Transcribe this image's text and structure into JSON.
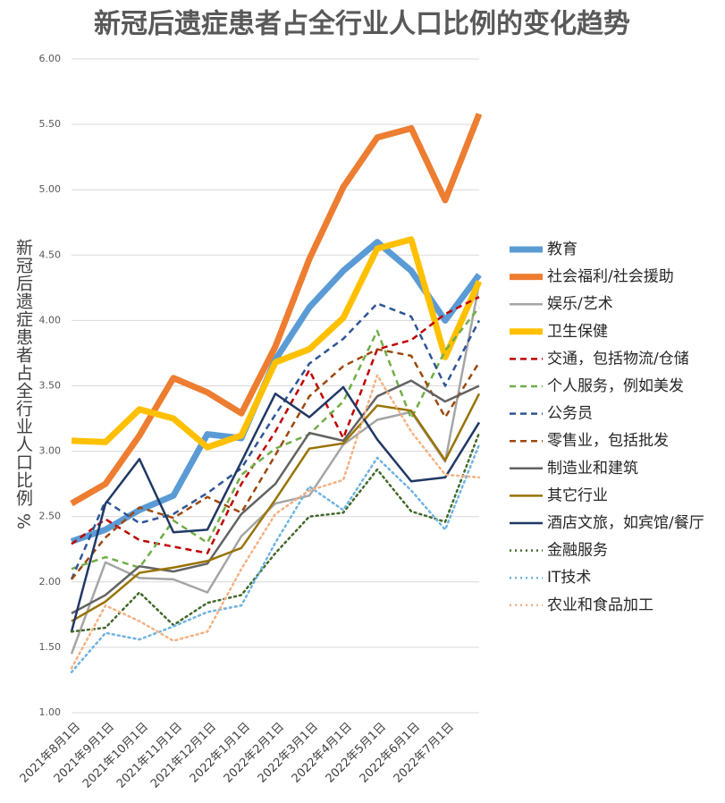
{
  "chart_data": {
    "type": "line",
    "title": "新冠后遗症患者占全行业人口比例的变化趋势",
    "y_label": "新冠后遗症患者占全行业人口比例 %",
    "categories": [
      "2021年8月1日",
      "2021年9月1日",
      "2021年10月1日",
      "2021年11月1日",
      "2021年12月1日",
      "2022年1月1日",
      "2022年2月1日",
      "2022年3月1日",
      "2022年4月1日",
      "2022年5月1日",
      "2022年6月1日",
      "2022年7月1日",
      null
    ],
    "ylim": [
      1,
      6
    ],
    "yticks": [
      {
        "value": 1,
        "label": "1.00"
      },
      {
        "value": 1.5,
        "label": "1.50"
      },
      {
        "value": 2,
        "label": "2.00"
      },
      {
        "value": 2.5,
        "label": "2.50"
      },
      {
        "value": 3,
        "label": "3.00"
      },
      {
        "value": 3.5,
        "label": "3.50"
      },
      {
        "value": 4,
        "label": "4.00"
      },
      {
        "value": 4.5,
        "label": "4.50"
      },
      {
        "value": 5,
        "label": "5.00"
      },
      {
        "value": 5.5,
        "label": "5.50"
      },
      {
        "value": 6,
        "label": "6.00"
      }
    ],
    "grid": true,
    "legend": "right",
    "series": [
      {
        "name": "教育",
        "color": "#5b9bd5",
        "width": 7,
        "dash": "solid",
        "values": [
          2.31,
          2.4,
          2.55,
          2.66,
          3.13,
          3.1,
          3.7,
          4.1,
          4.38,
          4.6,
          4.38,
          4.0,
          4.35
        ]
      },
      {
        "name": "社会福利/社会援助",
        "color": "#ed7d31",
        "width": 7,
        "dash": "solid",
        "values": [
          2.6,
          2.75,
          3.12,
          3.56,
          3.45,
          3.29,
          3.8,
          4.47,
          5.02,
          5.4,
          5.47,
          4.92,
          5.58
        ]
      },
      {
        "name": "娱乐/艺术",
        "color": "#a5a5a5",
        "width": 2.5,
        "dash": "solid",
        "values": [
          1.45,
          2.15,
          2.03,
          2.02,
          1.92,
          2.35,
          2.6,
          2.66,
          3.05,
          3.24,
          3.3,
          2.92,
          4.28
        ]
      },
      {
        "name": "卫生保健",
        "color": "#ffc000",
        "width": 7,
        "dash": "solid",
        "values": [
          3.08,
          3.07,
          3.32,
          3.25,
          3.03,
          3.12,
          3.68,
          3.78,
          4.02,
          4.55,
          4.62,
          3.72,
          4.3
        ]
      },
      {
        "name": "交通，包括物流/仓储",
        "color": "#c00000",
        "width": 2.5,
        "dash": "dash",
        "values": [
          2.29,
          2.48,
          2.32,
          2.27,
          2.22,
          2.75,
          3.15,
          3.62,
          3.1,
          3.78,
          3.85,
          4.05,
          4.18
        ]
      },
      {
        "name": "个人服务，例如美发",
        "color": "#70ad47",
        "width": 2.5,
        "dash": "dash",
        "values": [
          2.1,
          2.19,
          2.11,
          2.47,
          2.3,
          2.82,
          3.02,
          3.13,
          3.38,
          3.92,
          3.25,
          3.77,
          4.1
        ]
      },
      {
        "name": "公务员",
        "color": "#2e5597",
        "width": 2.5,
        "dash": "dash",
        "values": [
          2.02,
          2.62,
          2.45,
          2.52,
          2.68,
          2.87,
          3.28,
          3.67,
          3.86,
          4.13,
          4.03,
          3.5,
          4.0
        ]
      },
      {
        "name": "零售业，包括批发",
        "color": "#9e480e",
        "width": 2.5,
        "dash": "dash",
        "values": [
          2.02,
          2.34,
          2.57,
          2.49,
          2.65,
          2.53,
          2.97,
          3.42,
          3.65,
          3.78,
          3.73,
          3.26,
          3.68
        ]
      },
      {
        "name": "制造业和建筑",
        "color": "#636363",
        "width": 2.5,
        "dash": "solid",
        "values": [
          1.76,
          1.9,
          2.12,
          2.08,
          2.14,
          2.52,
          2.75,
          3.14,
          3.08,
          3.42,
          3.54,
          3.38,
          3.5
        ]
      },
      {
        "name": "其它行业",
        "color": "#997300",
        "width": 2.5,
        "dash": "solid",
        "values": [
          1.7,
          1.85,
          2.07,
          2.11,
          2.16,
          2.26,
          2.63,
          3.02,
          3.06,
          3.35,
          3.31,
          2.93,
          3.44
        ]
      },
      {
        "name": "酒店文旅，如宾馆/餐厅",
        "color": "#203864",
        "width": 2.5,
        "dash": "solid",
        "values": [
          1.62,
          2.6,
          2.94,
          2.38,
          2.4,
          2.92,
          3.44,
          3.26,
          3.49,
          3.09,
          2.77,
          2.8,
          3.22
        ]
      },
      {
        "name": "金融服务",
        "color": "#43682b",
        "width": 2.5,
        "dash": "dot",
        "values": [
          1.62,
          1.65,
          1.92,
          1.67,
          1.84,
          1.9,
          2.22,
          2.5,
          2.53,
          2.86,
          2.54,
          2.46,
          3.14
        ]
      },
      {
        "name": "IT技术",
        "color": "#6fb3e0",
        "width": 2.5,
        "dash": "dot",
        "values": [
          1.31,
          1.61,
          1.56,
          1.66,
          1.77,
          1.82,
          2.3,
          2.73,
          2.55,
          2.95,
          2.7,
          2.4,
          3.05
        ]
      },
      {
        "name": "农业和食品加工",
        "color": "#f4b183",
        "width": 2.5,
        "dash": "dot",
        "values": [
          1.34,
          1.82,
          1.7,
          1.55,
          1.62,
          2.1,
          2.52,
          2.7,
          2.78,
          3.58,
          3.15,
          2.82,
          2.8
        ]
      }
    ]
  }
}
